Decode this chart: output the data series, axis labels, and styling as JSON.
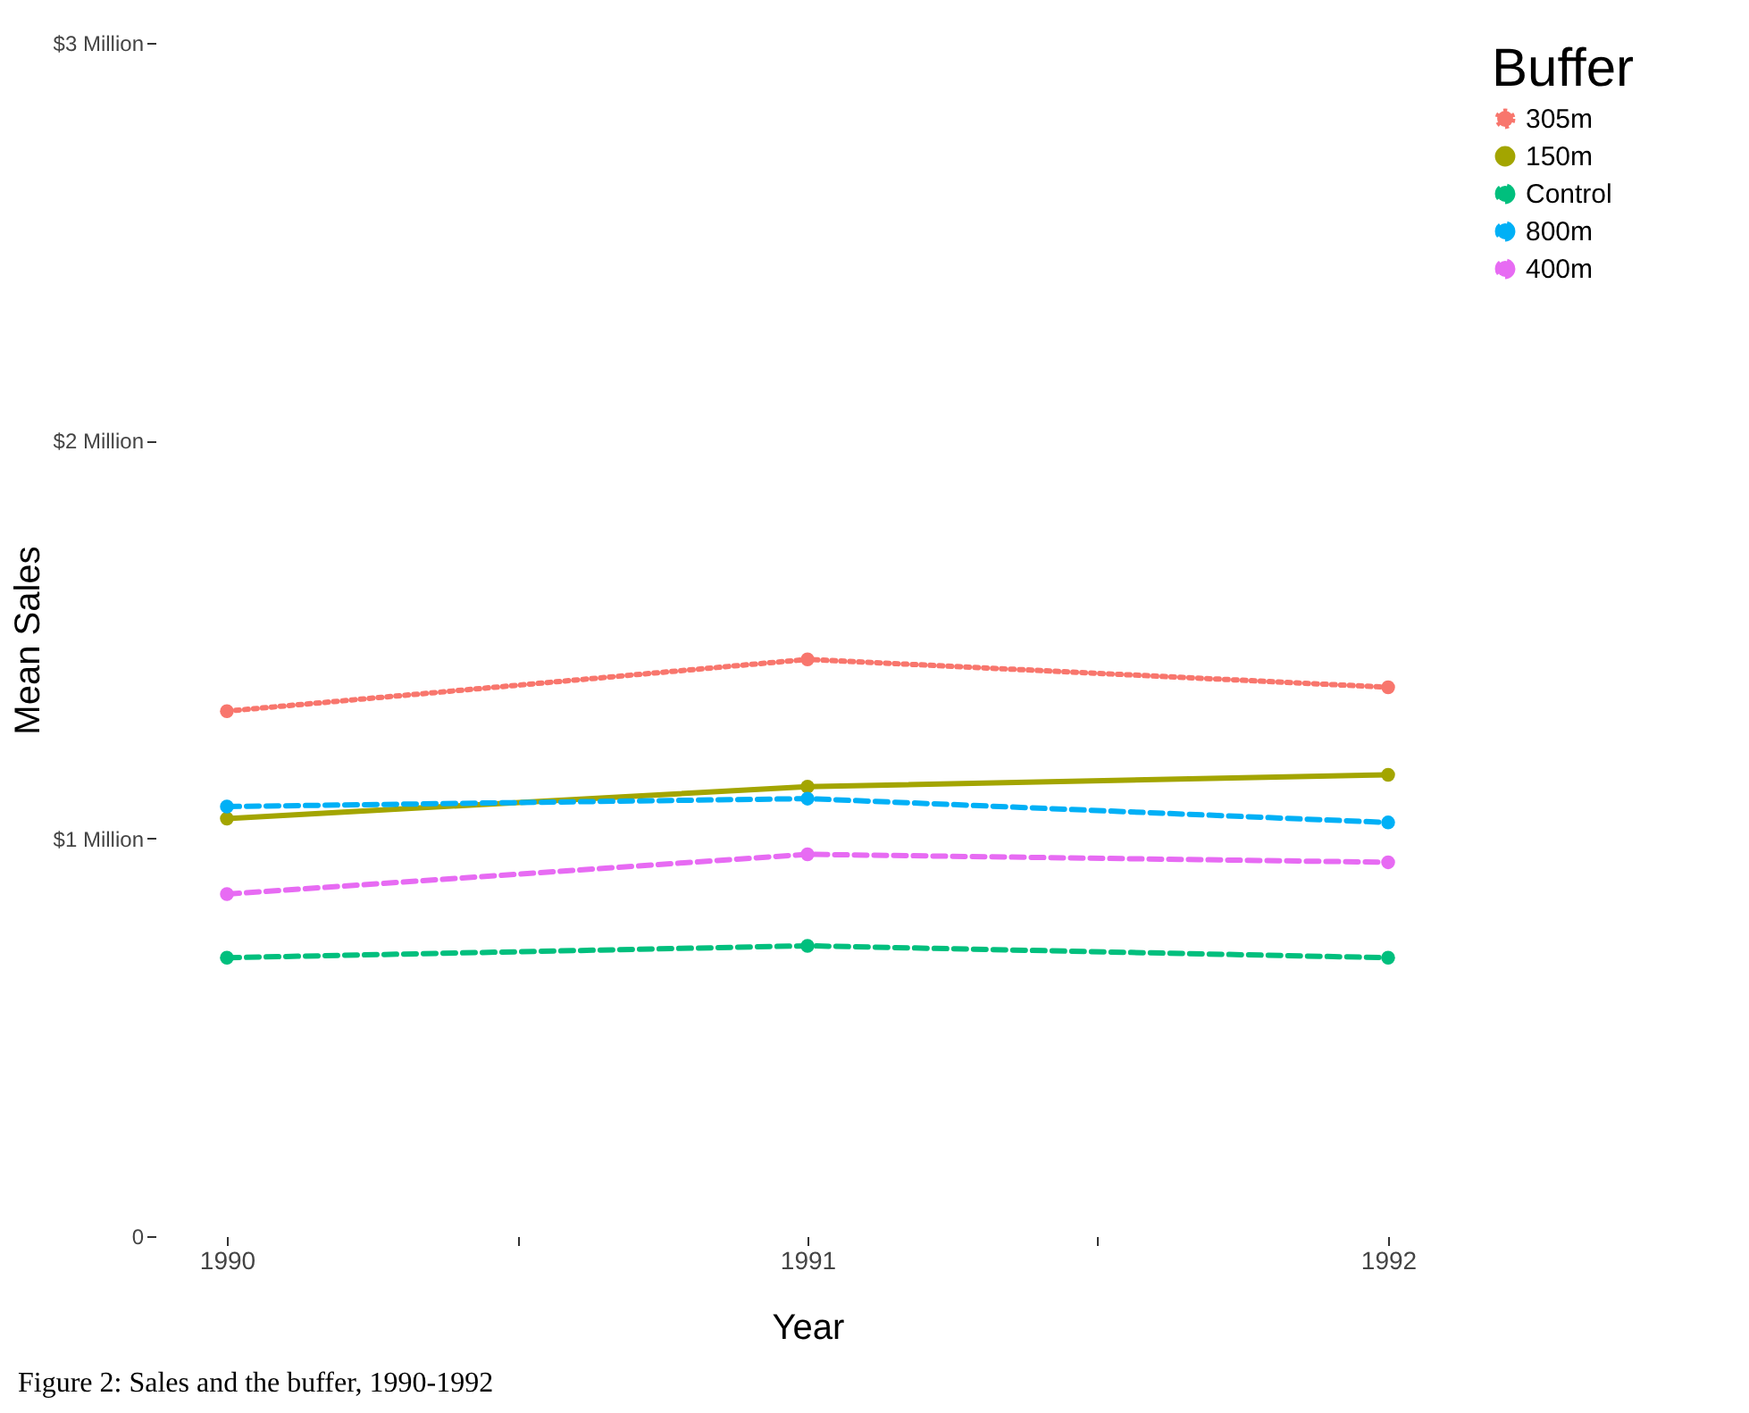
{
  "chart_data": {
    "type": "line",
    "xlabel": "Year",
    "ylabel": "Mean Sales",
    "legend_title": "Buffer",
    "x": [
      1990,
      1991,
      1992
    ],
    "xlim": [
      1990,
      1992
    ],
    "xticks": [
      1990,
      {
        "value": 1990.5,
        "label": null
      },
      1991,
      {
        "value": 1991.5,
        "label": null
      },
      1992
    ],
    "ylim": [
      0,
      3
    ],
    "yticks": [
      0,
      {
        "value": 1,
        "label": "$1 Million"
      },
      {
        "value": 2,
        "label": "$2 Million"
      },
      {
        "value": 3,
        "label": "$3 Million"
      }
    ],
    "grid": false,
    "legend": "right",
    "marker": "circle",
    "series": [
      {
        "name": "305m",
        "color": "#f8766d",
        "line_style": "dotted",
        "values": [
          1.32,
          1.45,
          1.38
        ]
      },
      {
        "name": "150m",
        "color": "#a3a500",
        "line_style": "solid",
        "values": [
          1.05,
          1.13,
          1.16
        ]
      },
      {
        "name": "Control",
        "color": "#00bf7d",
        "line_style": "dashed",
        "values": [
          0.7,
          0.73,
          0.7
        ]
      },
      {
        "name": "800m",
        "color": "#00b0f6",
        "line_style": "dashed",
        "values": [
          1.08,
          1.1,
          1.04
        ]
      },
      {
        "name": "400m",
        "color": "#e76bf3",
        "line_style": "dashed",
        "values": [
          0.86,
          0.96,
          0.94
        ]
      }
    ],
    "annotations": [
      "Figure 2: Sales and the buffer, 1990-1992"
    ]
  }
}
